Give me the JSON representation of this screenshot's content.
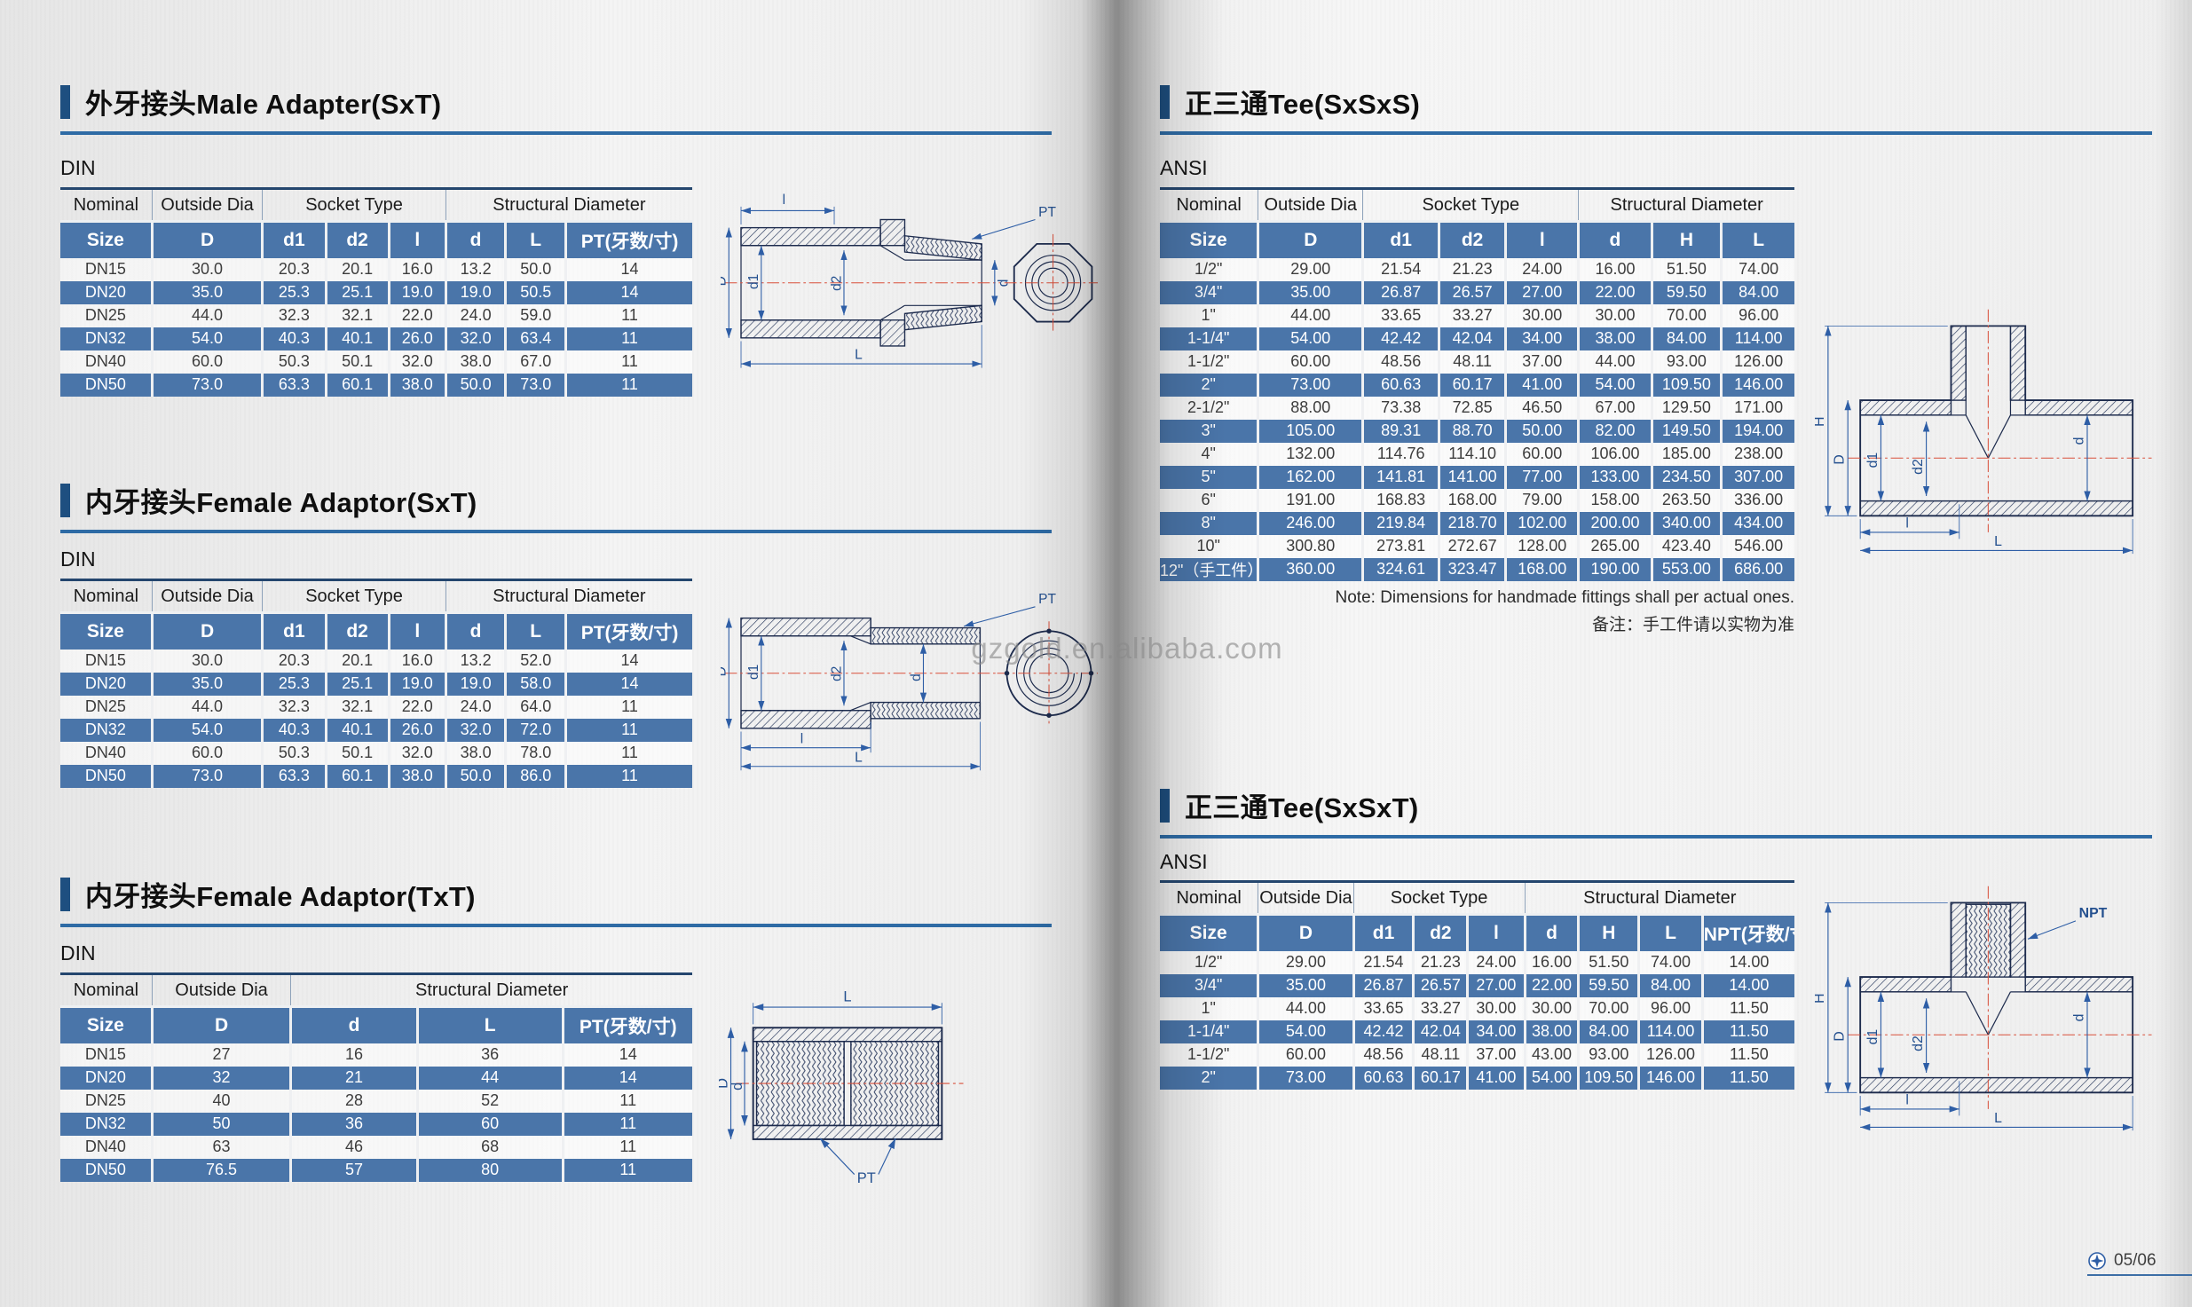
{
  "page": {
    "watermark": "gzgold.en.alibaba.com",
    "page_number": "05/06"
  },
  "sections": {
    "male_adapter_sxt": {
      "title_zh": "外牙接头",
      "title_en": "Male Adapter(SxT)",
      "standard": "DIN",
      "table": {
        "widths": [
          14.5,
          17.5,
          10,
          10,
          9,
          9.5,
          9.5,
          20
        ],
        "groups": [
          {
            "label": "Nominal",
            "span": 1
          },
          {
            "label": "Outside Dia",
            "span": 1
          },
          {
            "label": "Socket Type",
            "span": 3
          },
          {
            "label": "Structural Diameter",
            "span": 3
          }
        ],
        "headers": [
          "Size",
          "D",
          "d1",
          "d2",
          "l",
          "d",
          "L",
          "PT(牙数/寸)"
        ],
        "rows": [
          [
            "DN15",
            "30.0",
            "20.3",
            "20.1",
            "16.0",
            "13.2",
            "50.0",
            "14"
          ],
          [
            "DN20",
            "35.0",
            "25.3",
            "25.1",
            "19.0",
            "19.0",
            "50.5",
            "14"
          ],
          [
            "DN25",
            "44.0",
            "32.3",
            "32.1",
            "22.0",
            "24.0",
            "59.0",
            "11"
          ],
          [
            "DN32",
            "54.0",
            "40.3",
            "40.1",
            "26.0",
            "32.0",
            "63.4",
            "11"
          ],
          [
            "DN40",
            "60.0",
            "50.3",
            "50.1",
            "32.0",
            "38.0",
            "67.0",
            "11"
          ],
          [
            "DN50",
            "73.0",
            "63.3",
            "60.1",
            "38.0",
            "50.0",
            "73.0",
            "11"
          ]
        ]
      }
    },
    "female_adaptor_sxt": {
      "title_zh": "内牙接头",
      "title_en": "Female Adaptor(SxT)",
      "standard": "DIN",
      "table": {
        "widths": [
          14.5,
          17.5,
          10,
          10,
          9,
          9.5,
          9.5,
          20
        ],
        "groups": [
          {
            "label": "Nominal",
            "span": 1
          },
          {
            "label": "Outside Dia",
            "span": 1
          },
          {
            "label": "Socket Type",
            "span": 3
          },
          {
            "label": "Structural Diameter",
            "span": 3
          }
        ],
        "headers": [
          "Size",
          "D",
          "d1",
          "d2",
          "l",
          "d",
          "L",
          "PT(牙数/寸)"
        ],
        "rows": [
          [
            "DN15",
            "30.0",
            "20.3",
            "20.1",
            "16.0",
            "13.2",
            "52.0",
            "14"
          ],
          [
            "DN20",
            "35.0",
            "25.3",
            "25.1",
            "19.0",
            "19.0",
            "58.0",
            "14"
          ],
          [
            "DN25",
            "44.0",
            "32.3",
            "32.1",
            "22.0",
            "24.0",
            "64.0",
            "11"
          ],
          [
            "DN32",
            "54.0",
            "40.3",
            "40.1",
            "26.0",
            "32.0",
            "72.0",
            "11"
          ],
          [
            "DN40",
            "60.0",
            "50.3",
            "50.1",
            "32.0",
            "38.0",
            "78.0",
            "11"
          ],
          [
            "DN50",
            "73.0",
            "63.3",
            "60.1",
            "38.0",
            "50.0",
            "86.0",
            "11"
          ]
        ]
      }
    },
    "female_adaptor_txt": {
      "title_zh": "内牙接头",
      "title_en": "Female Adaptor(TxT)",
      "standard": "DIN",
      "table": {
        "widths": [
          14.5,
          22,
          20,
          23,
          20.5
        ],
        "groups": [
          {
            "label": "Nominal",
            "span": 1
          },
          {
            "label": "Outside Dia",
            "span": 1
          },
          {
            "label": "Structural Diameter",
            "span": 3
          }
        ],
        "headers": [
          "Size",
          "D",
          "d",
          "L",
          "PT(牙数/寸)"
        ],
        "rows": [
          [
            "DN15",
            "27",
            "16",
            "36",
            "14"
          ],
          [
            "DN20",
            "32",
            "21",
            "44",
            "14"
          ],
          [
            "DN25",
            "40",
            "28",
            "52",
            "11"
          ],
          [
            "DN32",
            "50",
            "36",
            "60",
            "11"
          ],
          [
            "DN40",
            "63",
            "46",
            "68",
            "11"
          ],
          [
            "DN50",
            "76.5",
            "57",
            "80",
            "11"
          ]
        ]
      }
    },
    "tee_sxsxs": {
      "title_zh": "正三通",
      "title_en": "Tee(SxSxS)",
      "standard": "ANSI",
      "note_en": "Note: Dimensions for handmade fittings shall per actual ones.",
      "note_zh": "备注：手工件请以实物为准",
      "table": {
        "widths": [
          15.5,
          16.5,
          12,
          10.5,
          11.5,
          11.5,
          11,
          11.5
        ],
        "groups": [
          {
            "label": "Nominal",
            "span": 1
          },
          {
            "label": "Outside Dia",
            "span": 1
          },
          {
            "label": "Socket Type",
            "span": 3
          },
          {
            "label": "Structural Diameter",
            "span": 3
          }
        ],
        "headers": [
          "Size",
          "D",
          "d1",
          "d2",
          "l",
          "d",
          "H",
          "L"
        ],
        "rows": [
          [
            "1/2\"",
            "29.00",
            "21.54",
            "21.23",
            "24.00",
            "16.00",
            "51.50",
            "74.00"
          ],
          [
            "3/4\"",
            "35.00",
            "26.87",
            "26.57",
            "27.00",
            "22.00",
            "59.50",
            "84.00"
          ],
          [
            "1\"",
            "44.00",
            "33.65",
            "33.27",
            "30.00",
            "30.00",
            "70.00",
            "96.00"
          ],
          [
            "1-1/4\"",
            "54.00",
            "42.42",
            "42.04",
            "34.00",
            "38.00",
            "84.00",
            "114.00"
          ],
          [
            "1-1/2\"",
            "60.00",
            "48.56",
            "48.11",
            "37.00",
            "44.00",
            "93.00",
            "126.00"
          ],
          [
            "2\"",
            "73.00",
            "60.63",
            "60.17",
            "41.00",
            "54.00",
            "109.50",
            "146.00"
          ],
          [
            "2-1/2\"",
            "88.00",
            "73.38",
            "72.85",
            "46.50",
            "67.00",
            "129.50",
            "171.00"
          ],
          [
            "3\"",
            "105.00",
            "89.31",
            "88.70",
            "50.00",
            "82.00",
            "149.50",
            "194.00"
          ],
          [
            "4\"",
            "132.00",
            "114.76",
            "114.10",
            "60.00",
            "106.00",
            "185.00",
            "238.00"
          ],
          [
            "5\"",
            "162.00",
            "141.81",
            "141.00",
            "77.00",
            "133.00",
            "234.50",
            "307.00"
          ],
          [
            "6\"",
            "191.00",
            "168.83",
            "168.00",
            "79.00",
            "158.00",
            "263.50",
            "336.00"
          ],
          [
            "8\"",
            "246.00",
            "219.84",
            "218.70",
            "102.00",
            "200.00",
            "340.00",
            "434.00"
          ],
          [
            "10\"",
            "300.80",
            "273.81",
            "272.67",
            "128.00",
            "265.00",
            "423.40",
            "546.00"
          ],
          [
            "12\"（手工件）",
            "360.00",
            "324.61",
            "323.47",
            "168.00",
            "190.00",
            "553.00",
            "686.00"
          ]
        ]
      }
    },
    "tee_sxsxt": {
      "title_zh": "正三通",
      "title_en": "Tee(SxSxT)",
      "standard": "ANSI",
      "table": {
        "widths": [
          15.5,
          15,
          9.5,
          8.5,
          9,
          8.5,
          9.5,
          10,
          14.5
        ],
        "groups": [
          {
            "label": "Nominal",
            "span": 1
          },
          {
            "label": "Outside Dia",
            "span": 1
          },
          {
            "label": "Socket Type",
            "span": 3
          },
          {
            "label": "Structural Diameter",
            "span": 4
          }
        ],
        "headers": [
          "Size",
          "D",
          "d1",
          "d2",
          "l",
          "d",
          "H",
          "L",
          "NPT(牙数/寸)"
        ],
        "rows": [
          [
            "1/2\"",
            "29.00",
            "21.54",
            "21.23",
            "24.00",
            "16.00",
            "51.50",
            "74.00",
            "14.00"
          ],
          [
            "3/4\"",
            "35.00",
            "26.87",
            "26.57",
            "27.00",
            "22.00",
            "59.50",
            "84.00",
            "14.00"
          ],
          [
            "1\"",
            "44.00",
            "33.65",
            "33.27",
            "30.00",
            "30.00",
            "70.00",
            "96.00",
            "11.50"
          ],
          [
            "1-1/4\"",
            "54.00",
            "42.42",
            "42.04",
            "34.00",
            "38.00",
            "84.00",
            "114.00",
            "11.50"
          ],
          [
            "1-1/2\"",
            "60.00",
            "48.56",
            "48.11",
            "37.00",
            "43.00",
            "93.00",
            "126.00",
            "11.50"
          ],
          [
            "2\"",
            "73.00",
            "60.63",
            "60.17",
            "41.00",
            "54.00",
            "109.50",
            "146.00",
            "11.50"
          ]
        ]
      }
    }
  },
  "diagrams": {
    "male_adapter_sxt": {
      "labels": {
        "l": "l",
        "pt": "PT",
        "D": "D",
        "d1": "d1",
        "d2": "d2",
        "d": "d",
        "L": "L"
      }
    },
    "female_adaptor_sxt": {
      "labels": {
        "pt": "PT",
        "D": "D",
        "d1": "d1",
        "d2": "d2",
        "d": "d",
        "l": "l",
        "L": "L"
      }
    },
    "female_adaptor_txt": {
      "labels": {
        "L": "L",
        "D": "D",
        "d": "d",
        "pt": "PT"
      }
    },
    "tee_sxsxs": {
      "labels": {
        "H": "H",
        "D": "D",
        "d1": "d1",
        "d2": "d2",
        "d": "d",
        "l": "l",
        "L": "L"
      }
    },
    "tee_sxsxt": {
      "labels": {
        "H": "H",
        "D": "D",
        "d1": "d1",
        "d2": "d2",
        "d": "d",
        "l": "l",
        "L": "L",
        "npt": "NPT"
      }
    }
  }
}
